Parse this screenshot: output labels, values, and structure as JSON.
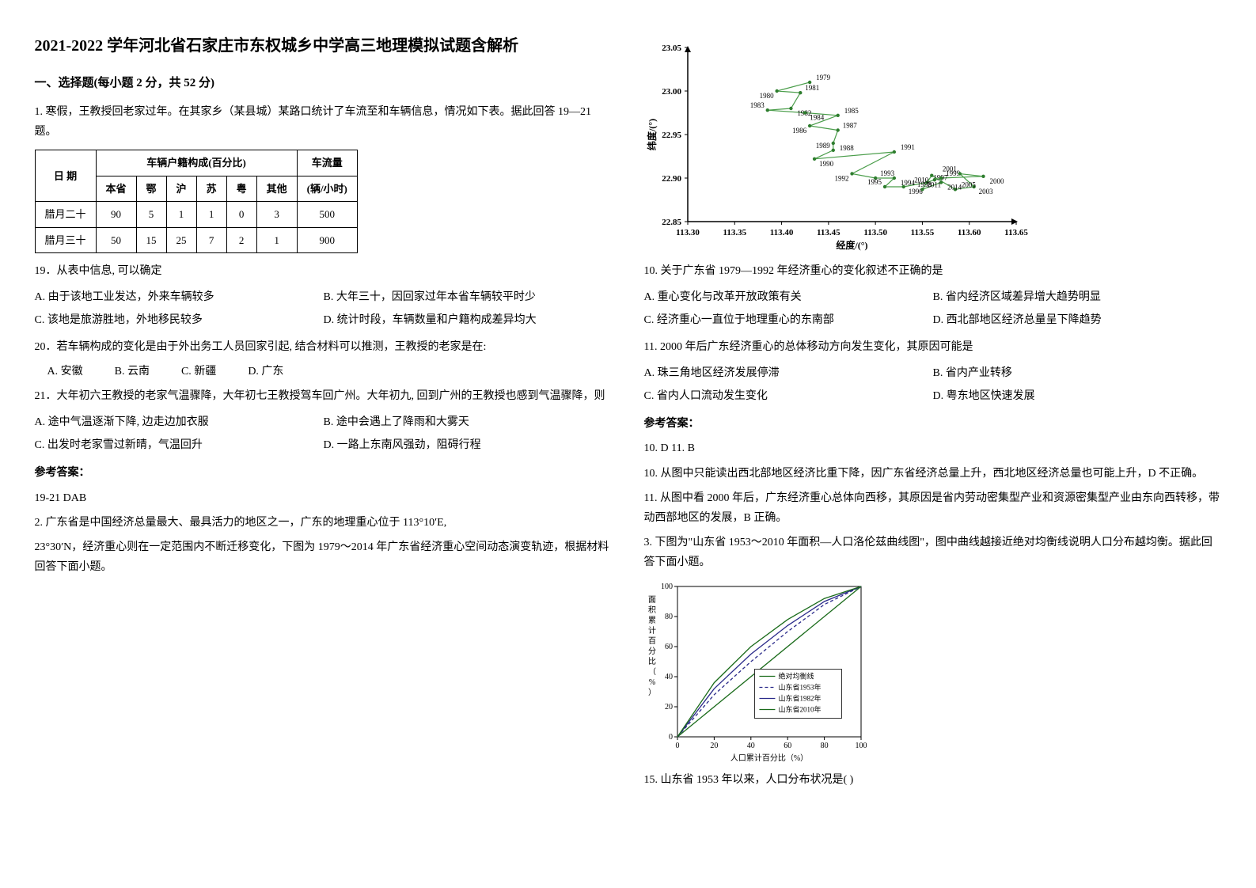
{
  "title": "2021-2022 学年河北省石家庄市东权城乡中学高三地理模拟试题含解析",
  "sectionA": "一、选择题(每小题 2 分，共 52 分)",
  "q1": {
    "stem": "1. 寒假，王教授回老家过年。在其家乡（某县城）某路口统计了车流至和车辆信息，情况如下表。据此回答 19—21 题。",
    "table": {
      "head1": "日 期",
      "head2": "车辆户籍构成(百分比)",
      "head3": "车流量",
      "sub": [
        "本省",
        "鄂",
        "沪",
        "苏",
        "粤",
        "其他"
      ],
      "unit": "(辆/小时)",
      "rows": [
        {
          "date": "腊月二十",
          "vals": [
            "90",
            "5",
            "1",
            "1",
            "0",
            "3"
          ],
          "flow": "500"
        },
        {
          "date": "腊月三十",
          "vals": [
            "50",
            "15",
            "25",
            "7",
            "2",
            "1"
          ],
          "flow": "900"
        }
      ]
    },
    "q19": "19．从表中信息, 可以确定",
    "q19opts": [
      "A. 由于该地工业发达，外来车辆较多",
      "B. 大年三十，因回家过年本省车辆较平时少",
      "C. 该地是旅游胜地，外地移民较多",
      "D. 统计时段，车辆数量和户籍构成差异均大"
    ],
    "q20": "20．若车辆构成的变化是由于外出务工人员回家引起, 结合材料可以推测，王教授的老家是在:",
    "q20opts": [
      "A. 安徽",
      "B. 云南",
      "C. 新疆",
      "D. 广东"
    ],
    "q21": "21．大年初六王教授的老家气温骤降，大年初七王教授驾车回广州。大年初九, 回到广州的王教授也感到气温骤降，则",
    "q21opts": [
      "A. 途中气温逐渐下降, 边走边加衣服",
      "B. 途中会遇上了降雨和大雾天",
      "C. 出发时老家雪过新晴，气温回升",
      "D. 一路上东南风强劲，阻碍行程"
    ]
  },
  "answerLabel": "参考答案：",
  "a1": "19-21 DAB",
  "q2": {
    "stem1": "2. 广东省是中国经济总量最大、最具活力的地区之一，广东的地理重心位于 113°10′E,",
    "stem2": "23°30′N，经济重心则在一定范围内不断迁移变化，下图为 1979～2014 年广东省经济重心空间动态演变轨迹，根据材料回答下面小题。"
  },
  "chart1": {
    "xlabel": "经度/(°)",
    "ylabel": "纬度/(°)",
    "xrange": [
      113.3,
      113.65
    ],
    "xstep": 0.05,
    "yrange": [
      22.85,
      23.05
    ],
    "ystep": 0.05,
    "years": [
      {
        "y": 1979,
        "lon": 113.43,
        "lat": 23.01
      },
      {
        "y": 1980,
        "lon": 113.395,
        "lat": 23.0
      },
      {
        "y": 1981,
        "lon": 113.42,
        "lat": 22.998
      },
      {
        "y": 1982,
        "lon": 113.41,
        "lat": 22.98
      },
      {
        "y": 1983,
        "lon": 113.385,
        "lat": 22.978
      },
      {
        "y": 1984,
        "lon": 113.425,
        "lat": 22.975
      },
      {
        "y": 1985,
        "lon": 113.46,
        "lat": 22.972
      },
      {
        "y": 1986,
        "lon": 113.43,
        "lat": 22.96
      },
      {
        "y": 1987,
        "lon": 113.46,
        "lat": 22.955
      },
      {
        "y": 1988,
        "lon": 113.455,
        "lat": 22.94
      },
      {
        "y": 1989,
        "lon": 113.455,
        "lat": 22.932
      },
      {
        "y": 1990,
        "lon": 113.435,
        "lat": 22.922
      },
      {
        "y": 1991,
        "lon": 113.52,
        "lat": 22.93
      },
      {
        "y": 1992,
        "lon": 113.475,
        "lat": 22.905
      },
      {
        "y": 1993,
        "lon": 113.5,
        "lat": 22.9
      },
      {
        "y": 1994,
        "lon": 113.52,
        "lat": 22.9
      },
      {
        "y": 1995,
        "lon": 113.51,
        "lat": 22.89
      },
      {
        "y": 1996,
        "lon": 113.53,
        "lat": 22.89
      },
      {
        "y": 1997,
        "lon": 113.555,
        "lat": 22.895
      },
      {
        "y": 1998,
        "lon": 113.563,
        "lat": 22.898
      },
      {
        "y": 1999,
        "lon": 113.57,
        "lat": 22.9
      },
      {
        "y": 2000,
        "lon": 113.615,
        "lat": 22.902
      },
      {
        "y": 2001,
        "lon": 113.59,
        "lat": 22.905
      },
      {
        "y": 2003,
        "lon": 113.605,
        "lat": 22.89
      },
      {
        "y": 2005,
        "lon": 113.585,
        "lat": 22.887
      },
      {
        "y": 2010,
        "lon": 113.56,
        "lat": 22.903
      },
      {
        "y": 2011,
        "lon": 113.55,
        "lat": 22.887
      },
      {
        "y": 2014,
        "lon": 113.57,
        "lat": 22.895
      }
    ],
    "line_color": "#4a9d4a",
    "marker_color": "#2e7d2e",
    "text_color": "#000",
    "grid_color": "#888"
  },
  "q10": {
    "stem": "10.  关于广东省 1979—1992 年经济重心的变化叙述不正确的是",
    "opts": [
      "A.  重心变化与改革开放政策有关",
      "B.  省内经济区域差异增大趋势明显",
      "C.  经济重心一直位于地理重心的东南部",
      "D.  西北部地区经济总量呈下降趋势"
    ]
  },
  "q11": {
    "stem": "11.  2000 年后广东经济重心的总体移动方向发生变化，其原因可能是",
    "opts": [
      "A.  珠三角地区经济发展停滞",
      "B.  省内产业转移",
      "C.  省内人口流动发生变化",
      "D.  粤东地区快速发展"
    ]
  },
  "a2": {
    "line1": "10.  D          11.  B",
    "line2": "10.  从图中只能读出西北部地区经济比重下降，因广东省经济总量上升，西北地区经济总量也可能上升，D 不正确。",
    "line3": "11.  从图中看 2000 年后，广东经济重心总体向西移，其原因是省内劳动密集型产业和资源密集型产业由东向西转移，带动西部地区的发展，B 正确。"
  },
  "q3": {
    "stem": "3. 下图为\"山东省 1953～2010 年面积—人口洛伦兹曲线图\"，图中曲线越接近绝对均衡线说明人口分布越均衡。据此回答下面小题。",
    "q15": "15.  山东省 1953 年以来，人口分布状况是(     )"
  },
  "chart2": {
    "xlabel": "人口累计百分比（%）",
    "ylabel": "面积累计百分比（%）",
    "range": [
      0,
      100
    ],
    "step": 20,
    "legend": [
      "绝对均衡线",
      "山东省1953年",
      "山东省1982年",
      "山东省2010年"
    ],
    "colors": [
      "#1a6b1a",
      "#2a2a8a",
      "#2a2a8a",
      "#1a6b1a"
    ],
    "styles": [
      "solid",
      "dash",
      "solid",
      "solid"
    ],
    "series": {
      "absolute": [
        [
          0,
          0
        ],
        [
          100,
          100
        ]
      ],
      "y1953": [
        [
          0,
          0
        ],
        [
          20,
          28
        ],
        [
          40,
          50
        ],
        [
          60,
          70
        ],
        [
          80,
          88
        ],
        [
          100,
          100
        ]
      ],
      "y1982": [
        [
          0,
          0
        ],
        [
          20,
          32
        ],
        [
          40,
          55
        ],
        [
          60,
          74
        ],
        [
          80,
          90
        ],
        [
          100,
          100
        ]
      ],
      "y2010": [
        [
          0,
          0
        ],
        [
          20,
          36
        ],
        [
          40,
          60
        ],
        [
          60,
          78
        ],
        [
          80,
          92
        ],
        [
          100,
          100
        ]
      ]
    }
  }
}
